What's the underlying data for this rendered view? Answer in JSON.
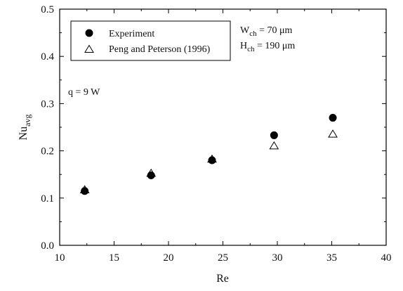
{
  "chart_data": {
    "type": "scatter",
    "title": "",
    "xlabel": "Re",
    "ylabel": {
      "main": "Nu",
      "sub": "avg"
    },
    "xlim": [
      10,
      40
    ],
    "ylim": [
      0.0,
      0.5
    ],
    "x_ticks": [
      "10",
      "15",
      "20",
      "25",
      "30",
      "35",
      "40"
    ],
    "y_ticks": [
      "0.0",
      "0.1",
      "0.2",
      "0.3",
      "0.4",
      "0.5"
    ],
    "grid": false,
    "legend_position": "top-left",
    "series": [
      {
        "name": "Experiment",
        "marker": "filled-circle",
        "color": "#000000",
        "points": [
          {
            "x": 12.3,
            "y": 0.115
          },
          {
            "x": 18.4,
            "y": 0.148
          },
          {
            "x": 24.0,
            "y": 0.18
          },
          {
            "x": 29.7,
            "y": 0.233
          },
          {
            "x": 35.1,
            "y": 0.27
          }
        ]
      },
      {
        "name": "Peng and Peterson (1996)",
        "marker": "open-triangle",
        "color": "#000000",
        "points": [
          {
            "x": 12.3,
            "y": 0.117
          },
          {
            "x": 18.4,
            "y": 0.152
          },
          {
            "x": 24.0,
            "y": 0.182
          },
          {
            "x": 29.7,
            "y": 0.21
          },
          {
            "x": 35.1,
            "y": 0.235
          }
        ]
      }
    ],
    "annotations": {
      "heat_input": "q = 9 W",
      "width": {
        "label": "W",
        "sub": "ch",
        "value": " = 70 μm"
      },
      "height": {
        "label": "H",
        "sub": "ch",
        "value": " = 190 μm"
      }
    }
  }
}
